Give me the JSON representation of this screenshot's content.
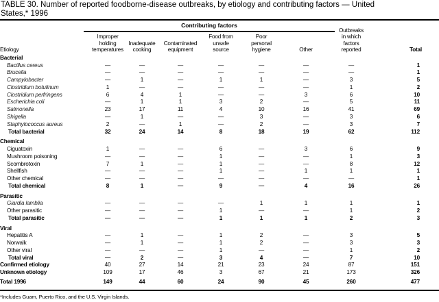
{
  "title": {
    "line1": "TABLE 30. Number of reported foodborne-disease outbreaks, by etiology and contributing factors — United",
    "line2": "States,* 1996"
  },
  "header": {
    "group_label": "Contributing factors",
    "etiology": "Etiology",
    "columns": [
      "Improper\nholding\ntemperatures",
      "Inadequate\ncooking",
      "Contaminated\nequipment",
      "Food from\nunsafe\nsource",
      "Poor\npersonal\nhygiene",
      "Other",
      "Outbreaks\nin which\nfactors\nreported",
      "Total"
    ]
  },
  "rows": [
    {
      "label": "Bacterial",
      "type": "section"
    },
    {
      "label": "Bacillus cereus",
      "italic": true,
      "values": [
        "—",
        "—",
        "—",
        "—",
        "—",
        "—",
        "—",
        "1"
      ]
    },
    {
      "label": "Brucella",
      "italic": true,
      "values": [
        "—",
        "—",
        "—",
        "—",
        "—",
        "—",
        "—",
        "1"
      ]
    },
    {
      "label": "Campylobacter",
      "italic": true,
      "values": [
        "—",
        "1",
        "—",
        "1",
        "1",
        "—",
        "3",
        "5"
      ]
    },
    {
      "label": "Clostridium botulinum",
      "italic": true,
      "values": [
        "1",
        "—",
        "—",
        "—",
        "—",
        "—",
        "1",
        "2"
      ]
    },
    {
      "label": "Clostridium perfringens",
      "italic": true,
      "values": [
        "6",
        "4",
        "1",
        "—",
        "—",
        "3",
        "6",
        "10"
      ]
    },
    {
      "label": "Escherichia coli",
      "italic": true,
      "values": [
        "—",
        "1",
        "1",
        "3",
        "2",
        "—",
        "5",
        "11"
      ]
    },
    {
      "label": "Salmonella",
      "italic": true,
      "values": [
        "23",
        "17",
        "11",
        "4",
        "10",
        "16",
        "41",
        "69"
      ]
    },
    {
      "label": "Shigella",
      "italic": true,
      "values": [
        "—",
        "1",
        "—",
        "—",
        "3",
        "—",
        "3",
        "6"
      ]
    },
    {
      "label": "Staphylococcus aureus",
      "italic": true,
      "values": [
        "2",
        "—",
        "1",
        "—",
        "2",
        "—",
        "3",
        "7"
      ]
    },
    {
      "label": "Total bacterial",
      "type": "total",
      "values": [
        "32",
        "24",
        "14",
        "8",
        "18",
        "19",
        "62",
        "112"
      ]
    },
    {
      "label": "Chemical",
      "type": "section"
    },
    {
      "label": "Ciguatoxin",
      "values": [
        "1",
        "—",
        "—",
        "6",
        "—",
        "3",
        "6",
        "9"
      ]
    },
    {
      "label": "Mushroom poisoning",
      "values": [
        "—",
        "—",
        "—",
        "1",
        "—",
        "—",
        "1",
        "3"
      ]
    },
    {
      "label": "Scombrotoxin",
      "values": [
        "7",
        "1",
        "—",
        "1",
        "—",
        "—",
        "8",
        "12"
      ]
    },
    {
      "label": "Shellfish",
      "values": [
        "—",
        "—",
        "—",
        "1",
        "—",
        "1",
        "1",
        "1"
      ]
    },
    {
      "label": "Other chemical",
      "values": [
        "—",
        "—",
        "—",
        "—",
        "—",
        "—",
        "—",
        "1"
      ]
    },
    {
      "label": "Total chemical",
      "type": "total",
      "values": [
        "8",
        "1",
        "—",
        "9",
        "—",
        "4",
        "16",
        "26"
      ]
    },
    {
      "label": "Parasitic",
      "type": "section"
    },
    {
      "label": "Giardia lamblia",
      "italic": true,
      "values": [
        "—",
        "—",
        "—",
        "—",
        "1",
        "1",
        "1",
        "1"
      ]
    },
    {
      "label": "Other parasitic",
      "values": [
        "—",
        "—",
        "—",
        "1",
        "—",
        "—",
        "1",
        "2"
      ]
    },
    {
      "label": "Total parasitic",
      "type": "total",
      "values": [
        "—",
        "—",
        "—",
        "1",
        "1",
        "1",
        "2",
        "3"
      ]
    },
    {
      "label": "Viral",
      "type": "section"
    },
    {
      "label": "Hepatitis A",
      "values": [
        "—",
        "1",
        "—",
        "1",
        "2",
        "—",
        "3",
        "5"
      ]
    },
    {
      "label": "Norwalk",
      "values": [
        "—",
        "1",
        "—",
        "1",
        "2",
        "—",
        "3",
        "3"
      ]
    },
    {
      "label": "Other viral",
      "values": [
        "—",
        "—",
        "—",
        "1",
        "—",
        "—",
        "1",
        "2"
      ]
    },
    {
      "label": "Total viral",
      "type": "total",
      "values": [
        "—",
        "2",
        "—",
        "3",
        "4",
        "—",
        "7",
        "10"
      ]
    },
    {
      "label": "Confirmed etiology",
      "type": "top",
      "values": [
        "40",
        "27",
        "14",
        "21",
        "23",
        "24",
        "87",
        "151"
      ]
    },
    {
      "label": "Unknown etiology",
      "type": "top",
      "values": [
        "109",
        "17",
        "46",
        "3",
        "67",
        "21",
        "173",
        "326"
      ]
    },
    {
      "label": "Total 1996",
      "type": "grand",
      "values": [
        "149",
        "44",
        "60",
        "24",
        "90",
        "45",
        "260",
        "477"
      ]
    }
  ],
  "footnote": "*Includes Guam, Puerto Rico, and the U.S. Virgin Islands."
}
